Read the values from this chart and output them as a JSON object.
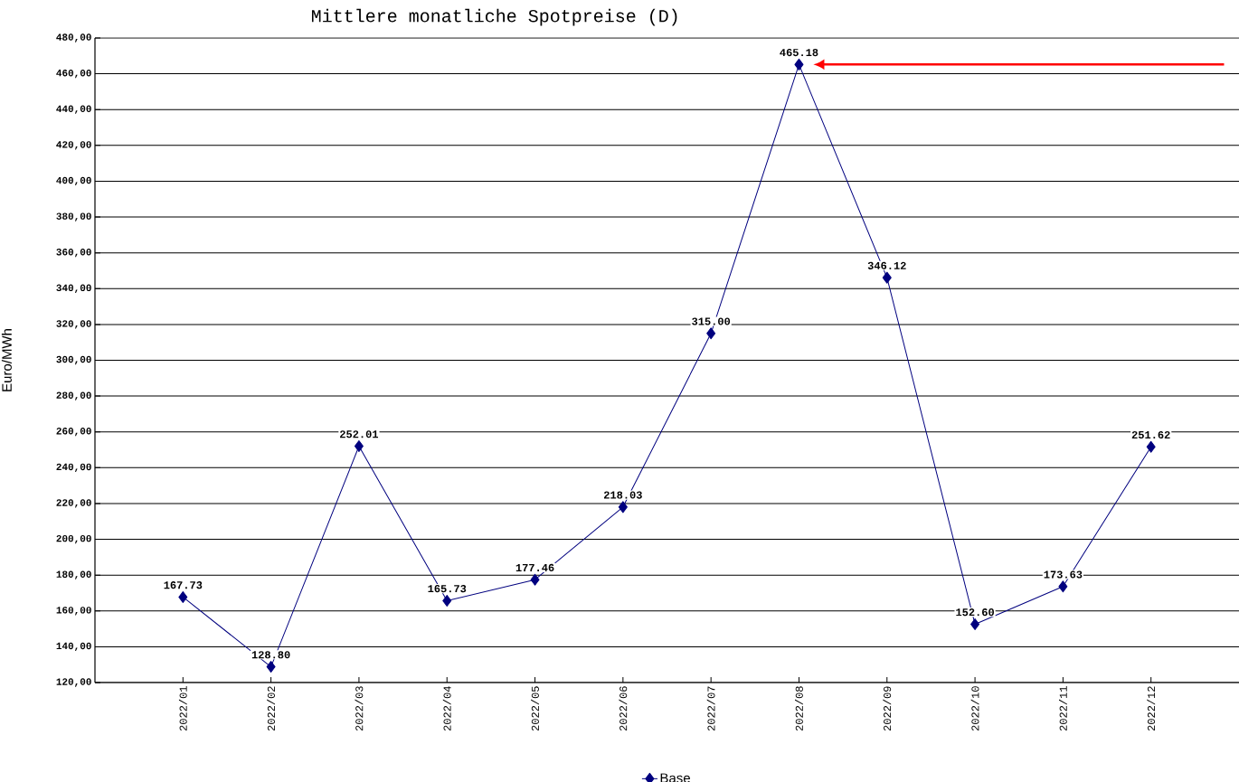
{
  "chart_data": {
    "type": "line",
    "title": "Mittlere monatliche Spotpreise (D)",
    "ylabel": "Euro/MWh",
    "categories": [
      "2022/01",
      "2022/02",
      "2022/03",
      "2022/04",
      "2022/05",
      "2022/06",
      "2022/07",
      "2022/08",
      "2022/09",
      "2022/10",
      "2022/11",
      "2022/12"
    ],
    "series": [
      {
        "name": "Base",
        "color": "#00007f",
        "values": [
          167.73,
          128.8,
          252.01,
          165.73,
          177.46,
          218.03,
          315.0,
          465.18,
          346.12,
          152.6,
          173.63,
          251.62
        ],
        "value_labels": [
          "167.73",
          "128.80",
          "252.01",
          "165.73",
          "177.46",
          "218.03",
          "315.00",
          "465.18",
          "346.12",
          "152.60",
          "173.63",
          "251.62"
        ]
      }
    ],
    "ylim": [
      120,
      480
    ],
    "yticks": [
      {
        "value": 120,
        "label": "120,00"
      },
      {
        "value": 140,
        "label": "140,00"
      },
      {
        "value": 160,
        "label": "160,00"
      },
      {
        "value": 180,
        "label": "180,00"
      },
      {
        "value": 200,
        "label": "200,00"
      },
      {
        "value": 220,
        "label": "220,00"
      },
      {
        "value": 240,
        "label": "240,00"
      },
      {
        "value": 260,
        "label": "260,00"
      },
      {
        "value": 280,
        "label": "280,00"
      },
      {
        "value": 300,
        "label": "300,00"
      },
      {
        "value": 320,
        "label": "320,00"
      },
      {
        "value": 340,
        "label": "340,00"
      },
      {
        "value": 360,
        "label": "360,00"
      },
      {
        "value": 380,
        "label": "380,00"
      },
      {
        "value": 400,
        "label": "400,00"
      },
      {
        "value": 420,
        "label": "420,00"
      },
      {
        "value": 440,
        "label": "440,00"
      },
      {
        "value": 460,
        "label": "460,00"
      },
      {
        "value": 480,
        "label": "480,00"
      }
    ],
    "grid": "y",
    "legend": "bottom",
    "marker": "diamond",
    "line_style": "solid"
  }
}
